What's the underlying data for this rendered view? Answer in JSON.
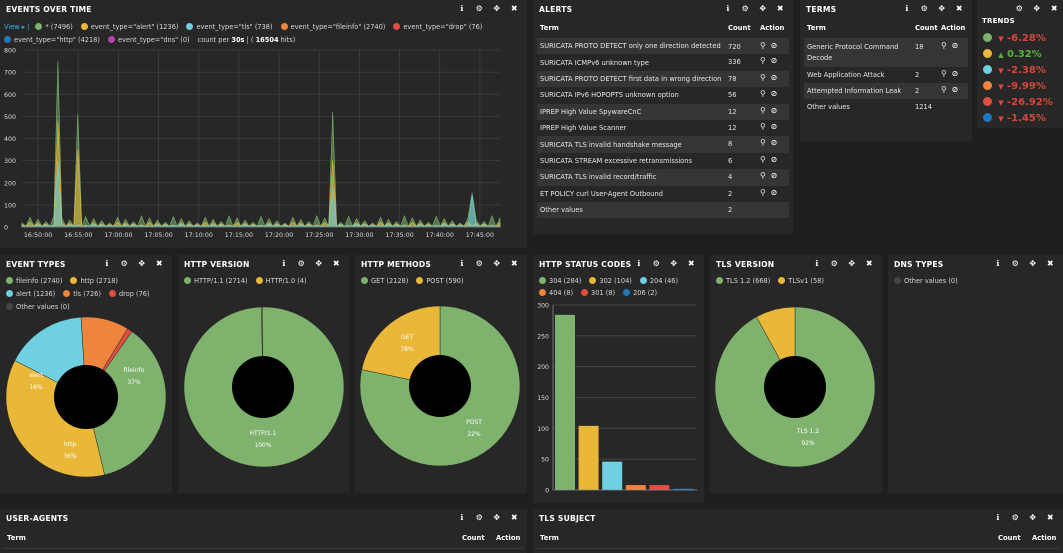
{
  "events_over_time": {
    "title": "EVENTS OVER TIME",
    "view_label": "View ▸ |",
    "legend": [
      {
        "label": "* (7496)",
        "color": "#7eb26d"
      },
      {
        "label": "event_type=\"alert\" (1236)",
        "color": "#eab839"
      },
      {
        "label": "event_type=\"tls\" (738)",
        "color": "#6ed0e0"
      },
      {
        "label": "event_type=\"fileinfo\" (2740)",
        "color": "#ef843c"
      },
      {
        "label": "event_type=\"drop\" (76)",
        "color": "#e24d42"
      },
      {
        "label": "event_type=\"http\" (4218)",
        "color": "#1f78c1"
      },
      {
        "label": "event_type=\"dns\" (0)",
        "color": "#ba43a9"
      }
    ],
    "count_per_prefix": "count per",
    "count_interval": "30s",
    "count_sep": "| (",
    "count_hits": "16504",
    "count_suffix": "hits)",
    "y_ticks": [
      "800",
      "700",
      "600",
      "500",
      "400",
      "300",
      "200",
      "100",
      "0"
    ],
    "x_ticks": [
      "16:50:00",
      "16:55:00",
      "17:00:00",
      "17:05:00",
      "17:10:00",
      "17:15:00",
      "17:20:00",
      "17:25:00",
      "17:30:00",
      "17:35:00",
      "17:40:00",
      "17:45:00"
    ]
  },
  "alerts": {
    "title": "ALERTS",
    "headers": {
      "term": "Term",
      "count": "Count",
      "action": "Action"
    },
    "rows": [
      {
        "term": "SURICATA PROTO DETECT only one direction detected",
        "count": "720"
      },
      {
        "term": "SURICATA ICMPv6 unknown type",
        "count": "336"
      },
      {
        "term": "SURICATA PROTO DETECT first data in wrong direction",
        "count": "78"
      },
      {
        "term": "SURICATA IPv6 HOPOPTS unknown option",
        "count": "56"
      },
      {
        "term": "IPREP High Value SpywareCnC",
        "count": "12"
      },
      {
        "term": "IPREP High Value Scanner",
        "count": "12"
      },
      {
        "term": "SURICATA TLS invalid handshake message",
        "count": "8"
      },
      {
        "term": "SURICATA STREAM excessive retransmissions",
        "count": "6"
      },
      {
        "term": "SURICATA TLS invalid record/traffic",
        "count": "4"
      },
      {
        "term": "ET POLICY curl User-Agent Outbound",
        "count": "2"
      }
    ],
    "other": {
      "term": "Other values",
      "count": "2"
    }
  },
  "terms": {
    "title": "TERMS",
    "headers": {
      "term": "Term",
      "count": "Count",
      "action": "Action"
    },
    "rows": [
      {
        "term": "Generic Protocol Command",
        "term2": "Decode",
        "count": "18"
      },
      {
        "term": "Web Application Attack",
        "count": "2"
      },
      {
        "term": "Attempted Information Leak",
        "count": "2"
      }
    ],
    "other": {
      "term": "Other values",
      "count": "1214"
    }
  },
  "trends": {
    "title": "TRENDS",
    "rows": [
      {
        "color": "#7eb26d",
        "dir": "down",
        "value": "-6.28%"
      },
      {
        "color": "#eab839",
        "dir": "up",
        "value": "0.32%"
      },
      {
        "color": "#6ed0e0",
        "dir": "down",
        "value": "-2.38%"
      },
      {
        "color": "#ef843c",
        "dir": "down",
        "value": "-9.99%"
      },
      {
        "color": "#e24d42",
        "dir": "down",
        "value": "-26.92%"
      },
      {
        "color": "#1f78c1",
        "dir": "down",
        "value": "-1.45%"
      },
      {
        "color": "#ba43a9",
        "dir": "up",
        "value": "?%"
      }
    ]
  },
  "event_types": {
    "title": "EVENT TYPES",
    "legend": [
      {
        "label": "fileinfo (2740)",
        "color": "#7eb26d"
      },
      {
        "label": "http (2718)",
        "color": "#eab839"
      },
      {
        "label": "alert (1236)",
        "color": "#6ed0e0"
      },
      {
        "label": "tls (726)",
        "color": "#ef843c"
      },
      {
        "label": "drop (76)",
        "color": "#e24d42"
      },
      {
        "label": "Other values (0)",
        "color": "#444444"
      }
    ],
    "slice_labels": [
      {
        "name": "fileinfo",
        "pct": "37%"
      },
      {
        "name": "http",
        "pct": "36%"
      },
      {
        "name": "alert",
        "pct": "16%"
      }
    ]
  },
  "http_version": {
    "title": "HTTP VERSION",
    "legend": [
      {
        "label": "HTTP/1.1 (2714)",
        "color": "#7eb26d"
      },
      {
        "label": "HTTP/1.0 (4)",
        "color": "#eab839"
      }
    ],
    "slice_labels": [
      {
        "name": "HTTP/1.1",
        "pct": "100%"
      }
    ]
  },
  "http_methods": {
    "title": "HTTP METHODS",
    "legend": [
      {
        "label": "GET (2128)",
        "color": "#7eb26d"
      },
      {
        "label": "POST (590)",
        "color": "#eab839"
      }
    ],
    "slice_labels": [
      {
        "name": "POST",
        "pct": "22%"
      },
      {
        "name": "GET",
        "pct": "78%"
      }
    ]
  },
  "http_status": {
    "title": "HTTP STATUS CODES",
    "legend": [
      {
        "label": "304 (284)",
        "color": "#7eb26d"
      },
      {
        "label": "302 (104)",
        "color": "#eab839"
      },
      {
        "label": "204 (46)",
        "color": "#6ed0e0"
      },
      {
        "label": "404 (8)",
        "color": "#ef843c"
      },
      {
        "label": "301 (8)",
        "color": "#e24d42"
      },
      {
        "label": "206 (2)",
        "color": "#1f78c1"
      }
    ],
    "y_ticks": [
      "300",
      "250",
      "200",
      "150",
      "100",
      "50",
      "0"
    ]
  },
  "tls_version": {
    "title": "TLS VERSION",
    "legend": [
      {
        "label": "TLS 1.2 (668)",
        "color": "#7eb26d"
      },
      {
        "label": "TLSv1 (58)",
        "color": "#eab839"
      }
    ],
    "slice_labels": [
      {
        "name": "TLS 1.2",
        "pct": "92%"
      }
    ]
  },
  "dns_types": {
    "title": "DNS TYPES",
    "legend": [
      {
        "label": "Other values (0)",
        "color": "#444444"
      }
    ]
  },
  "user_agents": {
    "title": "USER-AGENTS",
    "headers": {
      "term": "Term",
      "count": "Count",
      "action": "Action"
    }
  },
  "tls_subject": {
    "title": "TLS SUBJECT",
    "headers": {
      "term": "Term",
      "count": "Count",
      "action": "Action"
    }
  },
  "chart_data": [
    {
      "type": "area",
      "title": "EVENTS OVER TIME",
      "x_range": [
        "16:48:00",
        "17:47:30"
      ],
      "ylim": [
        0,
        800
      ],
      "grid": true,
      "series": [
        {
          "name": "* (7496)",
          "peaks": [
            {
              "x": "16:52:30",
              "y": 750
            },
            {
              "x": "16:55:00",
              "y": 510
            },
            {
              "x": "17:26:30",
              "y": 520
            },
            {
              "x": "17:44:00",
              "y": 155
            }
          ],
          "baseline": 40
        },
        {
          "name": "event_type=\"alert\" (1236)",
          "peaks": [
            {
              "x": "16:52:30",
              "y": 480
            },
            {
              "x": "16:55:00",
              "y": 350
            },
            {
              "x": "17:26:30",
              "y": 300
            }
          ],
          "baseline": 18
        },
        {
          "name": "event_type=\"tls\" (738)",
          "peaks": [
            {
              "x": "16:52:30",
              "y": 300
            },
            {
              "x": "17:26:30",
              "y": 180
            },
            {
              "x": "17:44:00",
              "y": 140
            }
          ],
          "baseline": 10
        }
      ]
    },
    {
      "type": "pie",
      "title": "EVENT TYPES",
      "labels": [
        "fileinfo",
        "http",
        "alert",
        "tls",
        "drop"
      ],
      "values": [
        2740,
        2718,
        1236,
        726,
        76
      ]
    },
    {
      "type": "pie",
      "title": "HTTP VERSION",
      "labels": [
        "HTTP/1.1",
        "HTTP/1.0"
      ],
      "values": [
        2714,
        4
      ]
    },
    {
      "type": "pie",
      "title": "HTTP METHODS",
      "labels": [
        "GET",
        "POST"
      ],
      "values": [
        2128,
        590
      ]
    },
    {
      "type": "bar",
      "title": "HTTP STATUS CODES",
      "categories": [
        "304",
        "302",
        "204",
        "404",
        "301",
        "206"
      ],
      "values": [
        284,
        104,
        46,
        8,
        8,
        2
      ],
      "ylim": [
        0,
        300
      ]
    },
    {
      "type": "pie",
      "title": "TLS VERSION",
      "labels": [
        "TLS 1.2",
        "TLSv1"
      ],
      "values": [
        668,
        58
      ]
    }
  ]
}
